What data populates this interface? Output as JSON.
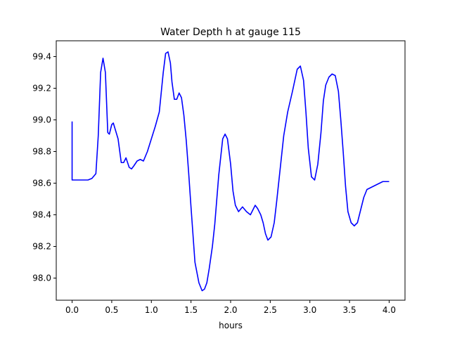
{
  "chart_data": {
    "type": "line",
    "title": "Water Depth h at gauge 115",
    "xlabel": "hours",
    "ylabel": "",
    "xlim": [
      -0.2,
      4.2
    ],
    "ylim": [
      97.86,
      99.5
    ],
    "xticks": [
      0.0,
      0.5,
      1.0,
      1.5,
      2.0,
      2.5,
      3.0,
      3.5,
      4.0
    ],
    "xtick_labels": [
      "0.0",
      "0.5",
      "1.0",
      "1.5",
      "2.0",
      "2.5",
      "3.0",
      "3.5",
      "4.0"
    ],
    "yticks": [
      98.0,
      98.2,
      98.4,
      98.6,
      98.8,
      99.0,
      99.2,
      99.4
    ],
    "ytick_labels": [
      "98.0",
      "98.2",
      "98.4",
      "98.6",
      "98.8",
      "99.0",
      "99.2",
      "99.4"
    ],
    "grid": false,
    "line_color": "#0000ff",
    "series": [
      {
        "x": [
          0.0,
          0.0,
          0.1,
          0.2,
          0.25,
          0.3,
          0.33,
          0.36,
          0.39,
          0.42,
          0.45,
          0.47,
          0.5,
          0.52,
          0.55,
          0.58,
          0.62,
          0.65,
          0.68,
          0.72,
          0.75,
          0.78,
          0.82,
          0.86,
          0.9,
          0.95,
          1.0,
          1.05,
          1.1,
          1.15,
          1.18,
          1.21,
          1.24,
          1.26,
          1.29,
          1.32,
          1.35,
          1.38,
          1.41,
          1.44,
          1.47,
          1.5,
          1.55,
          1.6,
          1.64,
          1.67,
          1.7,
          1.73,
          1.77,
          1.8,
          1.85,
          1.9,
          1.93,
          1.96,
          2.0,
          2.03,
          2.06,
          2.1,
          2.15,
          2.2,
          2.25,
          2.28,
          2.31,
          2.34,
          2.38,
          2.41,
          2.44,
          2.47,
          2.51,
          2.55,
          2.58,
          2.61,
          2.64,
          2.67,
          2.72,
          2.78,
          2.84,
          2.88,
          2.92,
          2.95,
          2.98,
          3.02,
          3.06,
          3.1,
          3.14,
          3.17,
          3.2,
          3.24,
          3.28,
          3.32,
          3.36,
          3.39,
          3.42,
          3.45,
          3.48,
          3.52,
          3.56,
          3.6,
          3.64,
          3.68,
          3.72,
          3.76,
          3.8,
          3.84,
          3.88,
          3.92,
          3.96,
          4.0
        ],
        "y": [
          98.99,
          98.62,
          98.62,
          98.62,
          98.63,
          98.66,
          98.9,
          99.3,
          99.39,
          99.3,
          98.92,
          98.91,
          98.97,
          98.98,
          98.93,
          98.88,
          98.73,
          98.73,
          98.76,
          98.7,
          98.69,
          98.71,
          98.74,
          98.75,
          98.74,
          98.8,
          98.88,
          98.96,
          99.05,
          99.3,
          99.42,
          99.43,
          99.36,
          99.24,
          99.13,
          99.13,
          99.17,
          99.14,
          99.03,
          98.87,
          98.67,
          98.45,
          98.1,
          97.97,
          97.92,
          97.93,
          97.97,
          98.06,
          98.2,
          98.34,
          98.65,
          98.88,
          98.91,
          98.88,
          98.72,
          98.55,
          98.46,
          98.42,
          98.45,
          98.42,
          98.4,
          98.43,
          98.46,
          98.44,
          98.4,
          98.35,
          98.28,
          98.24,
          98.26,
          98.35,
          98.48,
          98.62,
          98.76,
          98.9,
          99.05,
          99.18,
          99.32,
          99.34,
          99.25,
          99.05,
          98.82,
          98.64,
          98.62,
          98.72,
          98.92,
          99.12,
          99.22,
          99.27,
          99.29,
          99.28,
          99.18,
          99.0,
          98.8,
          98.58,
          98.42,
          98.35,
          98.33,
          98.35,
          98.43,
          98.51,
          98.56,
          98.57,
          98.58,
          98.59,
          98.6,
          98.61,
          98.61,
          98.61
        ]
      }
    ]
  }
}
